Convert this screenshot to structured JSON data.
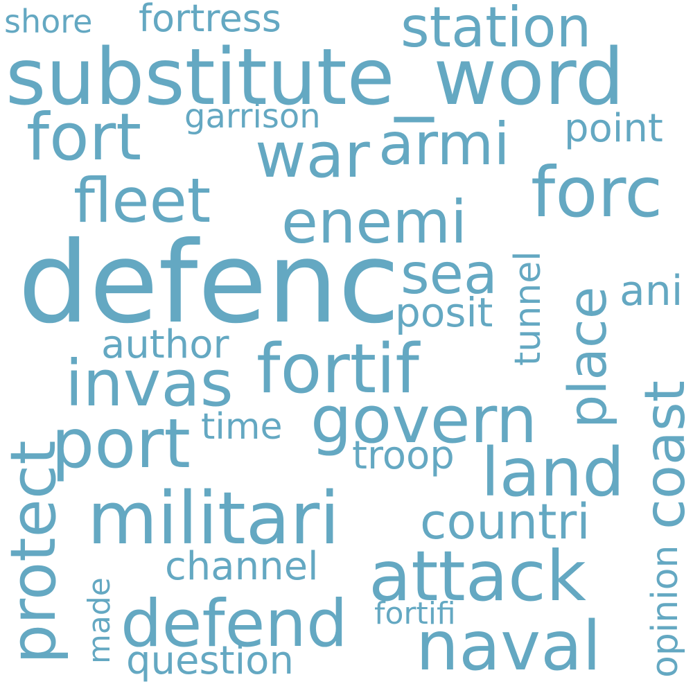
{
  "color": "#64a8c2",
  "words": {
    "shore": "shore",
    "fortress": "fortress",
    "station": "station",
    "substitute_word": "substitute_word",
    "fort": "fort",
    "garrison": "garrison",
    "war": "war",
    "armi": "armi",
    "point": "point",
    "fleet": "fleet",
    "forc": "forc",
    "enemi": "enemi",
    "defenc": "defenc",
    "sea": "sea",
    "posit": "posit",
    "ani": "ani",
    "tunnel": "tunnel",
    "place": "place",
    "author": "author",
    "fortif": "fortif",
    "invas": "invas",
    "coast": "coast",
    "protect": "protect",
    "port": "port",
    "time": "time",
    "govern": "govern",
    "troop": "troop",
    "land": "land",
    "militari": "militari",
    "countri": "countri",
    "opinion": "opinion",
    "channel": "channel",
    "attack": "attack",
    "made": "made",
    "defend": "defend",
    "fortifi": "fortifi",
    "naval": "naval",
    "question": "question"
  }
}
